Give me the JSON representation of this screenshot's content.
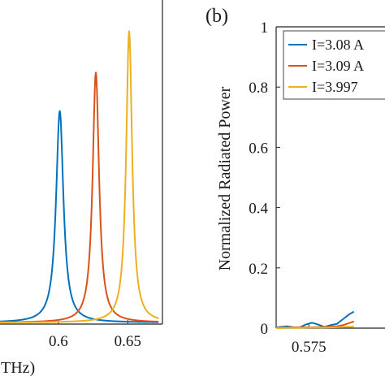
{
  "chart_data": [
    {
      "panel": "a",
      "type": "line",
      "xlabel": "THz)",
      "ylabel": "",
      "xlim": [
        0.555,
        0.675
      ],
      "ylim": [
        0,
        1
      ],
      "x_ticks": [
        0.6,
        0.65
      ],
      "x_tick_labels": [
        "0.6",
        "0.65"
      ],
      "series": [
        {
          "color": "#0072BD",
          "peak_x": 0.601,
          "peak_y": 0.72,
          "width": 0.0032,
          "baseline": 0.005
        },
        {
          "color": "#D95319",
          "peak_x": 0.627,
          "peak_y": 0.85,
          "width": 0.0028,
          "baseline": 0.005
        },
        {
          "color": "#EDB120",
          "peak_x": 0.651,
          "peak_y": 0.99,
          "width": 0.0026,
          "baseline": 0.005
        }
      ]
    },
    {
      "panel": "b",
      "type": "line",
      "panel_label": "(b)",
      "xlabel": "",
      "ylabel": "Normalized Radiated Power",
      "xlim": [
        0.5645,
        0.6
      ],
      "ylim": [
        0,
        1
      ],
      "x_ticks": [
        0.575
      ],
      "x_tick_labels": [
        "0.575"
      ],
      "y_ticks": [
        0,
        0.2,
        0.4,
        0.6,
        0.8,
        1
      ],
      "y_tick_labels": [
        "0",
        "0.2",
        "0.4",
        "0.6",
        "0.8",
        "1"
      ],
      "legend": {
        "placement": "top-right",
        "entries": [
          {
            "label": "I=3.08 A",
            "color": "#0072BD"
          },
          {
            "label": "I=3.09 A",
            "color": "#D95319"
          },
          {
            "label": "I=3.997",
            "color": "#EDB120"
          }
        ]
      },
      "series": [
        {
          "color": "#0072BD",
          "x": [
            0.5645,
            0.566,
            0.568,
            0.57,
            0.572,
            0.574,
            0.576,
            0.578,
            0.58,
            0.582,
            0.584,
            0.586,
            0.588,
            0.5895
          ],
          "y": [
            0.002,
            0.004,
            0.006,
            0.003,
            0.002,
            0.012,
            0.018,
            0.012,
            0.004,
            0.01,
            0.014,
            0.03,
            0.046,
            0.055
          ]
        },
        {
          "color": "#D95319",
          "x": [
            0.5645,
            0.568,
            0.572,
            0.576,
            0.58,
            0.584,
            0.586,
            0.5895
          ],
          "y": [
            0.001,
            0.002,
            0.003,
            0.003,
            0.004,
            0.006,
            0.01,
            0.022
          ]
        },
        {
          "color": "#EDB120",
          "x": [
            0.5645,
            0.568,
            0.572,
            0.576,
            0.58,
            0.584,
            0.5895
          ],
          "y": [
            0.0,
            0.001,
            0.001,
            0.002,
            0.002,
            0.003,
            0.005
          ]
        }
      ]
    }
  ]
}
